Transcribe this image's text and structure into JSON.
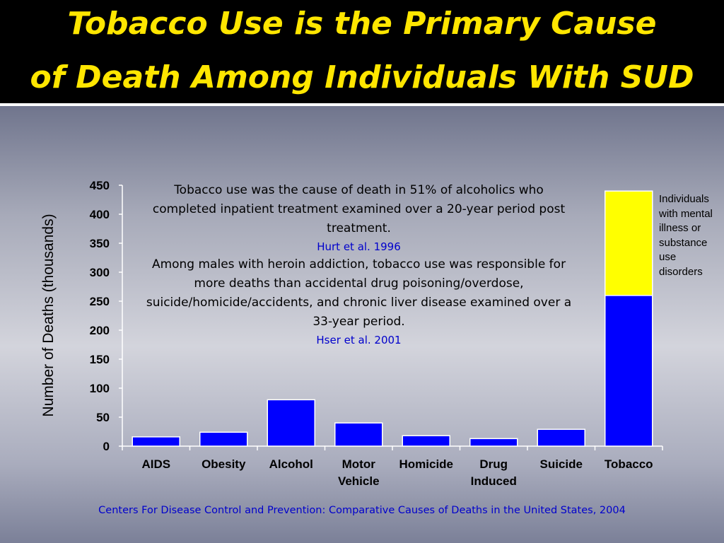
{
  "slide": {
    "title_line_1": "Tobacco Use is the Primary Cause",
    "title_line_2": "of Death Among Individuals With SUD"
  },
  "annotation": {
    "text_1": "Tobacco use was the cause of death in 51% of alcoholics who completed inpatient treatment examined over a 20-year period post treatment.",
    "cite_1": "Hurt et al. 1996",
    "text_2": "Among males with heroin addiction, tobacco use was responsible for more deaths than accidental drug poisoning/overdose, suicide/homicide/accidents, and chronic liver disease examined over a 33-year period.",
    "cite_2": "Hser et al. 2001"
  },
  "legend_note": "Individuals with mental illness or substance use disorders",
  "source": "Centers For Disease Control and Prevention: Comparative Causes of Deaths in the United States, 2004",
  "colors": {
    "title": "#ffe600",
    "bar_primary": "#0000ff",
    "bar_highlight": "#ffff00",
    "citation": "#0000cc"
  },
  "chart_data": {
    "type": "bar",
    "stacked": true,
    "title": "",
    "xlabel": "",
    "ylabel": "Number of Deaths (thousands)",
    "ylim": [
      0,
      450
    ],
    "yticks": [
      0,
      50,
      100,
      150,
      200,
      250,
      300,
      350,
      400,
      450
    ],
    "categories": [
      "AIDS",
      "Obesity",
      "Alcohol",
      "Motor Vehicle",
      "Homicide",
      "Drug Induced",
      "Suicide",
      "Tobacco"
    ],
    "category_lines": [
      [
        "AIDS"
      ],
      [
        "Obesity"
      ],
      [
        "Alcohol"
      ],
      [
        "Motor",
        "Vehicle"
      ],
      [
        "Homicide"
      ],
      [
        "Drug",
        "Induced"
      ],
      [
        "Suicide"
      ],
      [
        "Tobacco"
      ]
    ],
    "series": [
      {
        "values": [
          16,
          24,
          80,
          40,
          18,
          13,
          29,
          260
        ],
        "color": "#0000ff"
      },
      {
        "name": "Individuals with mental illness or substance use disorders",
        "values": [
          0,
          0,
          0,
          0,
          0,
          0,
          0,
          180
        ],
        "color": "#ffff00"
      }
    ],
    "grid": false,
    "legend": "right"
  }
}
